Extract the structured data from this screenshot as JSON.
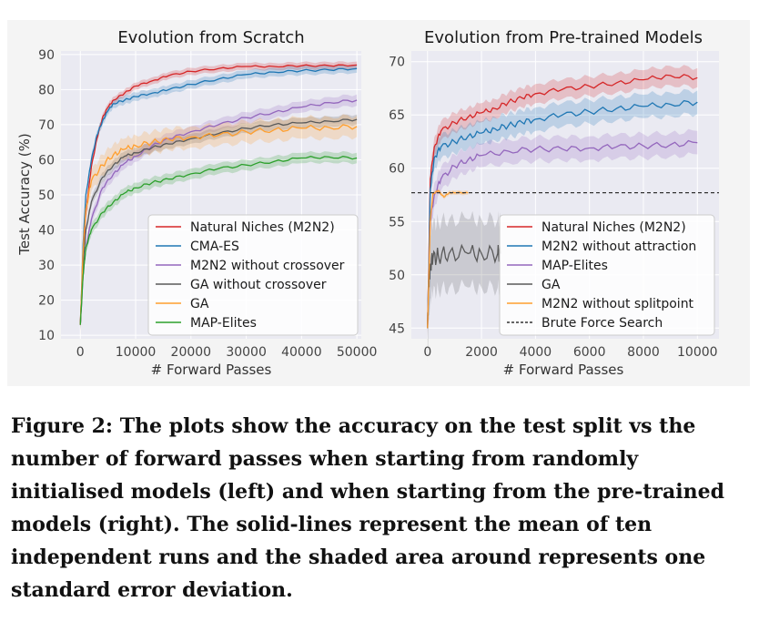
{
  "caption": "Figure 2: The plots show the accuracy on the test split vs the number of forward passes when starting from randomly initialised models (left) and when starting from the pre-trained models (right). The solid-lines represent the mean of ten independent runs and the shaded area around represents one standard error deviation.",
  "colors": {
    "panel_bg": "#eaeaf2",
    "grid": "#ffffff",
    "red": "#d62728",
    "blue": "#1f77b4",
    "purple": "#9467bd",
    "gray": "#5a5a5a",
    "orange": "#ff9f2e",
    "green": "#2ca02c"
  },
  "chart_data": [
    {
      "type": "line",
      "title": "Evolution from Scratch",
      "xlabel": "# Forward Passes",
      "ylabel": "Test Accuracy (%)",
      "xlim": [
        -3500,
        50800
      ],
      "ylim": [
        9,
        91
      ],
      "xticks": [
        0,
        10000,
        20000,
        30000,
        40000,
        50000
      ],
      "xtick_labels": [
        "0",
        "10000",
        "20000",
        "30000",
        "40000",
        "50000"
      ],
      "yticks": [
        10,
        20,
        30,
        40,
        50,
        60,
        70,
        80,
        90
      ],
      "ytick_labels": [
        "10",
        "20",
        "30",
        "40",
        "50",
        "60",
        "70",
        "80",
        "90"
      ],
      "legend_position": "lower-right",
      "series": [
        {
          "name": "Natural Niches (M2N2)",
          "color": "#d62728",
          "band": 1.0,
          "x": [
            0,
            500,
            1000,
            2000,
            3000,
            4000,
            5000,
            6000,
            8000,
            10000,
            13000,
            16000,
            20000,
            25000,
            30000,
            35000,
            40000,
            45000,
            50000
          ],
          "y": [
            13,
            33,
            45,
            58,
            66,
            72,
            75,
            77,
            79,
            81,
            82.5,
            84,
            85.2,
            86,
            86.6,
            86.6,
            86.8,
            86.8,
            87
          ]
        },
        {
          "name": "CMA-ES",
          "color": "#1f77b4",
          "band": 1.2,
          "x": [
            0,
            500,
            1000,
            2000,
            3000,
            4000,
            5000,
            6000,
            8000,
            10000,
            13000,
            16000,
            20000,
            25000,
            30000,
            35000,
            40000,
            45000,
            50000
          ],
          "y": [
            13,
            36,
            50,
            60,
            67,
            71,
            74,
            76,
            77,
            78,
            79,
            80,
            81.5,
            83,
            84.3,
            85,
            85.4,
            85.6,
            86
          ]
        },
        {
          "name": "M2N2 without crossover",
          "color": "#9467bd",
          "band": 1.6,
          "x": [
            0,
            500,
            1000,
            2000,
            4000,
            6000,
            8000,
            10000,
            13000,
            16000,
            20000,
            25000,
            30000,
            35000,
            40000,
            45000,
            50000
          ],
          "y": [
            13,
            27,
            35,
            43,
            52,
            56,
            59,
            61,
            64,
            66,
            68,
            70,
            72,
            73.5,
            75,
            76.3,
            77
          ]
        },
        {
          "name": "GA without crossover",
          "color": "#5a5a5a",
          "band": 1.4,
          "x": [
            0,
            500,
            1000,
            2000,
            4000,
            6000,
            8000,
            10000,
            13000,
            16000,
            20000,
            25000,
            30000,
            35000,
            40000,
            45000,
            50000
          ],
          "y": [
            13,
            30,
            40,
            48,
            55,
            58.5,
            61,
            62,
            63.5,
            64.5,
            66,
            67.5,
            69,
            70,
            70.5,
            71,
            71.5
          ]
        },
        {
          "name": "GA",
          "color": "#ff9f2e",
          "band": 3.0,
          "x": [
            0,
            500,
            1000,
            2000,
            4000,
            6000,
            8000,
            10000,
            13000,
            16000,
            20000,
            25000,
            30000,
            35000,
            40000,
            45000,
            50000
          ],
          "y": [
            13,
            34,
            46,
            54,
            58.5,
            61.5,
            63,
            64,
            65,
            65.8,
            66.5,
            67,
            68,
            68.5,
            69,
            69.2,
            69.5
          ]
        },
        {
          "name": "MAP-Elites",
          "color": "#2ca02c",
          "band": 1.5,
          "x": [
            0,
            500,
            1000,
            2000,
            4000,
            6000,
            8000,
            10000,
            13000,
            16000,
            20000,
            25000,
            30000,
            35000,
            40000,
            45000,
            50000
          ],
          "y": [
            13,
            27,
            35,
            40,
            45,
            48,
            50.5,
            52,
            53.5,
            54.5,
            56,
            57.5,
            58.5,
            59.5,
            60.5,
            60.8,
            60.5
          ]
        }
      ]
    },
    {
      "type": "line",
      "title": "Evolution from Pre-trained Models",
      "xlabel": "# Forward Passes",
      "ylabel": "",
      "xlim": [
        -600,
        10800
      ],
      "ylim": [
        44,
        71
      ],
      "xticks": [
        0,
        2000,
        4000,
        6000,
        8000,
        10000
      ],
      "xtick_labels": [
        "0",
        "2000",
        "4000",
        "6000",
        "8000",
        "10000"
      ],
      "yticks": [
        45,
        50,
        55,
        60,
        65,
        70
      ],
      "ytick_labels": [
        "45",
        "50",
        "55",
        "60",
        "65",
        "70"
      ],
      "legend_position": "lower-right",
      "reference_line": {
        "name": "Brute Force Search",
        "y": 57.7,
        "color": "#333333"
      },
      "series": [
        {
          "name": "Natural Niches (M2N2)",
          "color": "#d62728",
          "band": 0.9,
          "x": [
            0,
            100,
            250,
            500,
            1000,
            1500,
            2000,
            2500,
            3000,
            3500,
            4000,
            5000,
            6000,
            7000,
            8000,
            9000,
            10000
          ],
          "y": [
            45,
            59,
            62,
            63.5,
            64.3,
            64.8,
            65.2,
            65.6,
            66.2,
            66.6,
            67,
            67.4,
            67.7,
            68,
            68.3,
            68.7,
            68.5
          ]
        },
        {
          "name": "M2N2 without attraction",
          "color": "#1f77b4",
          "band": 1.1,
          "x": [
            0,
            100,
            250,
            500,
            1000,
            1500,
            2000,
            2500,
            3000,
            3500,
            4000,
            5000,
            6000,
            7000,
            8000,
            9000,
            10000
          ],
          "y": [
            45,
            58,
            61,
            62,
            62.5,
            63,
            63.3,
            63.7,
            64,
            64.3,
            64.6,
            65,
            65.3,
            65.6,
            65.8,
            66,
            66.2
          ]
        },
        {
          "name": "MAP-Elites",
          "color": "#9467bd",
          "band": 1.1,
          "x": [
            0,
            100,
            250,
            500,
            1000,
            1500,
            2000,
            3000,
            4000,
            5000,
            6000,
            7000,
            8000,
            9000,
            10000
          ],
          "y": [
            45,
            55,
            57.5,
            59,
            60.2,
            60.8,
            61.2,
            61.6,
            61.8,
            61.8,
            61.9,
            62,
            62.1,
            62.2,
            62.4
          ]
        },
        {
          "name": "GA",
          "color": "#5a5a5a",
          "band": 3.2,
          "x": [
            0,
            50,
            100,
            200,
            400,
            800,
            1500,
            2000,
            2600,
            2700
          ],
          "y": [
            45,
            49,
            51,
            51.5,
            51.8,
            52,
            52,
            52,
            52,
            52
          ]
        },
        {
          "name": "M2N2 without splitpoint",
          "color": "#ff9f2e",
          "band": 0.2,
          "x": [
            0,
            100,
            200,
            400,
            600,
            800,
            1000,
            1500
          ],
          "y": [
            45,
            55,
            57.6,
            57.9,
            57.3,
            57.7,
            57.7,
            57.7
          ]
        }
      ]
    }
  ]
}
